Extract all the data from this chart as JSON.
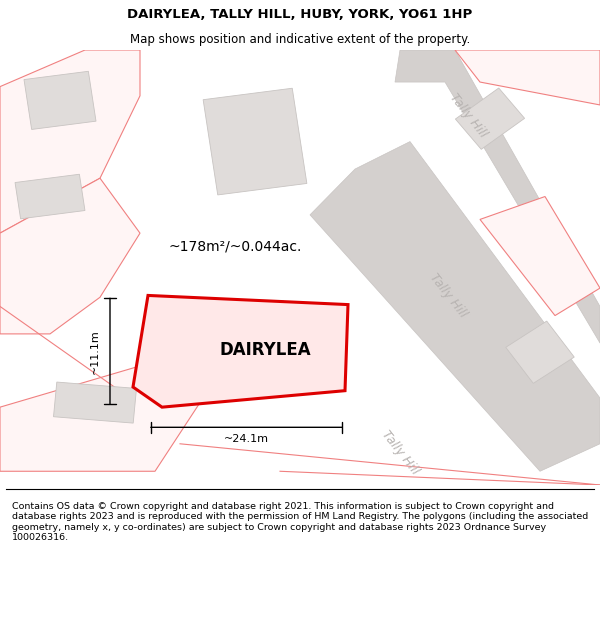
{
  "title": "DAIRYLEA, TALLY HILL, HUBY, YORK, YO61 1HP",
  "subtitle": "Map shows position and indicative extent of the property.",
  "footer": "Contains OS data © Crown copyright and database right 2021. This information is subject to Crown copyright and database rights 2023 and is reproduced with the permission of HM Land Registry. The polygons (including the associated geometry, namely x, y co-ordinates) are subject to Crown copyright and database rights 2023 Ordnance Survey 100026316.",
  "background_color": "#ffffff",
  "map_bg": "#fafafa",
  "title_fontsize": 9.5,
  "subtitle_fontsize": 8.5,
  "footer_fontsize": 6.8,
  "road_color": "#d4d0ce",
  "road_edge": "#c8c4c2",
  "building_fill": "#e0dcda",
  "building_edge": "#c8c4c2",
  "boundary_edge": "#f08080",
  "boundary_fill": "#fff5f5",
  "subject_fill": "#ffe8e8",
  "subject_edge": "#dd0000",
  "subject_label": "DAIRYLEA",
  "area_label": "~178m²/~0.044ac.",
  "width_label": "~24.1m",
  "height_label": "~11.1m",
  "road_label": "Tally Hill",
  "road_label_color": "#b8b4b2",
  "dim_color": "#000000"
}
